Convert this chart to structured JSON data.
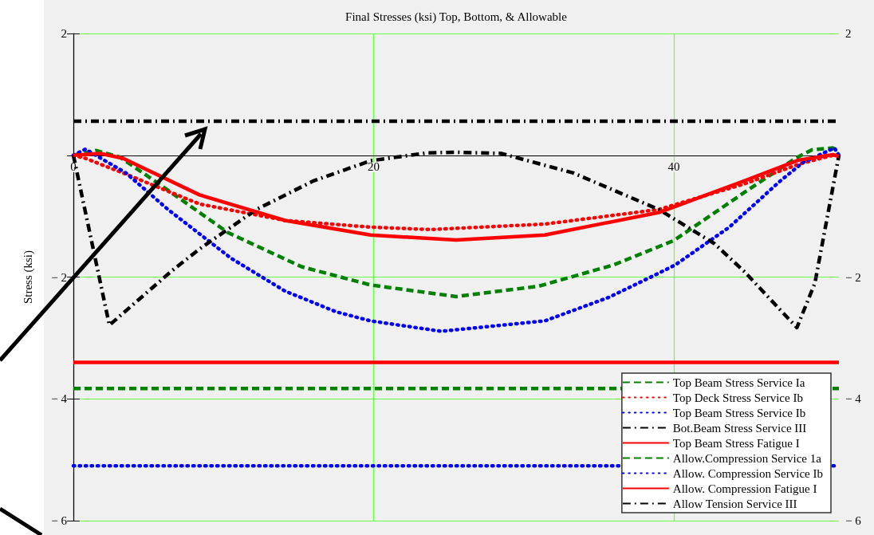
{
  "chart_data": {
    "type": "line",
    "title": "Final Stresses (ksi) Top, Bottom, & Allowable",
    "ylabel": "Stress (ksi)",
    "xlim": [
      0,
      51
    ],
    "xticks": [
      0,
      20,
      40
    ],
    "ylim": [
      -6,
      2
    ],
    "yticks": [
      {
        "value": -6,
        "label": "− 6"
      },
      {
        "value": -4,
        "label": "− 4"
      },
      {
        "value": -2,
        "label": "− 2"
      },
      {
        "value": 0,
        "label": null
      },
      {
        "value": 2,
        "label": "2"
      }
    ],
    "y2lim": [
      -6,
      2
    ],
    "y2ticks": [
      {
        "value": -6,
        "label": "− 6"
      },
      {
        "value": -4,
        "label": "− 4"
      },
      {
        "value": -2,
        "label": "− 2"
      },
      {
        "value": 0,
        "label": null
      },
      {
        "value": 2,
        "label": "2"
      }
    ],
    "grid": true,
    "legend": "bottom right",
    "marker": "none",
    "series": [
      {
        "name": "Top Beam Stress Service Ia",
        "color": "#008000",
        "line_style": "dashed",
        "x": [
          0,
          1.5,
          3.1,
          5.7,
          10.3,
          15.2,
          19.8,
          25.5,
          31,
          36,
          40,
          45,
          48.1,
          49.2,
          50.6,
          51
        ],
        "values": [
          0,
          0.08,
          -0.03,
          -0.47,
          -1.27,
          -1.83,
          -2.13,
          -2.32,
          -2.15,
          -1.8,
          -1.4,
          -0.56,
          -0.05,
          0.09,
          0.12,
          0
        ]
      },
      {
        "name": "Top Deck Stress Service Ib",
        "color": "#ff0000",
        "line_style": "dotted",
        "x": [
          0,
          0.8,
          3.3,
          8.4,
          14.1,
          19.8,
          23.8,
          31.4,
          39,
          44.7,
          48.4,
          50.6,
          51
        ],
        "values": [
          0,
          -0.05,
          -0.29,
          -0.8,
          -1.07,
          -1.18,
          -1.22,
          -1.13,
          -0.89,
          -0.47,
          -0.14,
          0,
          0
        ]
      },
      {
        "name": "Top Beam Stress Service Ib",
        "color": "#0000ff",
        "line_style": "dotted",
        "x": [
          0,
          0.8,
          3.5,
          6.3,
          10.5,
          14.1,
          17.5,
          19.8,
          24.5,
          31.4,
          35.7,
          38.8,
          40.1,
          43.7,
          47.1,
          48.6,
          50.7,
          51
        ],
        "values": [
          0,
          0.1,
          -0.29,
          -0.89,
          -1.69,
          -2.23,
          -2.57,
          -2.72,
          -2.89,
          -2.72,
          -2.33,
          -1.96,
          -1.8,
          -1.18,
          -0.42,
          -0.12,
          0.12,
          0
        ]
      },
      {
        "name": "Bot.Beam Stress Service III",
        "color": "#000000",
        "line_style": "dashdot",
        "x": [
          0,
          2.4,
          6.5,
          8.4,
          12.2,
          16,
          19.8,
          23.6,
          25.5,
          28.5,
          33.3,
          39,
          42.7,
          44.7,
          48.2,
          49.4,
          51
        ],
        "values": [
          0,
          -2.79,
          -1.91,
          -1.54,
          -0.89,
          -0.42,
          -0.09,
          0.04,
          0.05,
          0.03,
          -0.29,
          -0.89,
          -1.45,
          -1.91,
          -2.83,
          -2.1,
          0
        ]
      },
      {
        "name": "Top Beam Stress Fatigue I",
        "color": "#ff0000",
        "line_style": "solid",
        "x": [
          0,
          1.8,
          3.3,
          8.4,
          14.1,
          19.8,
          25.5,
          31.4,
          39,
          44.7,
          48.3,
          50.6,
          51
        ],
        "values": [
          0,
          0.03,
          -0.05,
          -0.65,
          -1.07,
          -1.31,
          -1.39,
          -1.31,
          -0.94,
          -0.42,
          -0.08,
          0.01,
          -0.02
        ]
      },
      {
        "name": "Allow.Compression Service 1a",
        "color": "#008000",
        "line_style": "dashed",
        "x": [
          0,
          51
        ],
        "values": [
          -3.83,
          -3.83
        ]
      },
      {
        "name": "Allow. Compression Service Ib",
        "color": "#0000ff",
        "line_style": "dotted",
        "x": [
          0,
          51
        ],
        "values": [
          -5.1,
          -5.1
        ]
      },
      {
        "name": "Allow. Compression Fatigue I",
        "color": "#ff0000",
        "line_style": "solid",
        "x": [
          0,
          51
        ],
        "values": [
          -3.4,
          -3.4
        ]
      },
      {
        "name": "Allow Tension Service III",
        "color": "#000000",
        "line_style": "dashdot",
        "x": [
          0,
          51
        ],
        "values": [
          0.56,
          0.56
        ]
      }
    ]
  }
}
